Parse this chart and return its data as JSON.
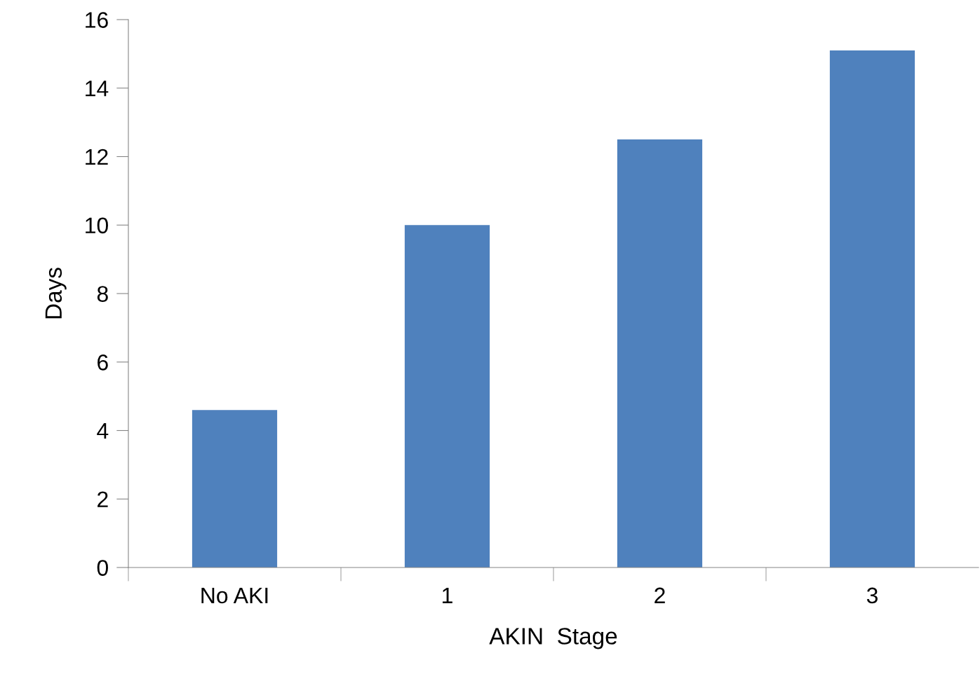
{
  "chart_data": {
    "type": "bar",
    "xlabel": "AKIN  Stage",
    "ylabel": "Days",
    "categories": [
      "No AKI",
      "1",
      "2",
      "3"
    ],
    "values": [
      4.6,
      10.0,
      12.5,
      15.1
    ],
    "color": "#4f81bd",
    "ylim": [
      0,
      16
    ],
    "yticks": [
      0,
      2,
      4,
      6,
      8,
      10,
      12,
      14,
      16
    ],
    "grid": false,
    "legend": false
  }
}
